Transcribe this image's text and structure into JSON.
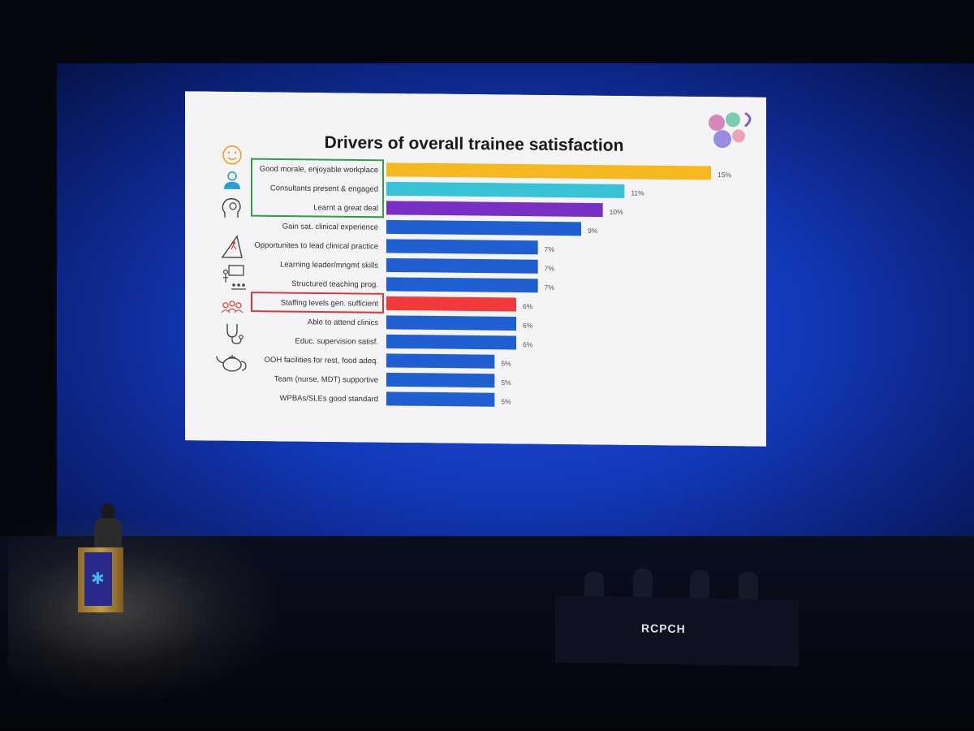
{
  "slide": {
    "title": "Drivers of overall trainee satisfaction"
  },
  "icons": [
    "smiley-icon",
    "consultant-icon",
    "lightbulb-head-icon",
    "climber-icon",
    "teacher-icon",
    "group-icon",
    "stethoscope-icon",
    "teapot-icon"
  ],
  "stage": {
    "table_label": "RCPCH"
  },
  "chart_data": {
    "type": "bar",
    "orientation": "horizontal",
    "title": "Drivers of overall trainee satisfaction",
    "categories": [
      "Good morale, enjoyable workplace",
      "Consultants present & engaged",
      "Learnt a great deal",
      "Gain sat. clinical experience",
      "Opportunites to lead clinical practice",
      "Learning leader/mngmt skills",
      "Structured teaching prog.",
      "Staffing levels gen. sufficient",
      "Able to attend clinics",
      "Educ. supervision satisf.",
      "OOH facilities for rest, food adeq.",
      "Team (nurse, MDT) supportive",
      "WPBAs/SLEs good standard"
    ],
    "values": [
      15,
      11,
      10,
      9,
      7,
      7,
      7,
      6,
      6,
      6,
      5,
      5,
      5
    ],
    "labels": [
      "15%",
      "11%",
      "10%",
      "9%",
      "7%",
      "7%",
      "7%",
      "6%",
      "6%",
      "6%",
      "5%",
      "5%",
      "5%"
    ],
    "unit": "%",
    "bar_colors": [
      "#f5b821",
      "#37c2d6",
      "#7a2fc4",
      "#1f5fd1",
      "#1f5fd1",
      "#1f5fd1",
      "#1f5fd1",
      "#f23a3a",
      "#1f5fd1",
      "#1f5fd1",
      "#1f5fd1",
      "#1f5fd1",
      "#1f5fd1"
    ],
    "highlight_boxes": [
      {
        "items": [
          0,
          1,
          2
        ],
        "color": "#2f9e44"
      },
      {
        "items": [
          7
        ],
        "color": "#d63a3a"
      }
    ],
    "grid": false,
    "legend": "none"
  }
}
